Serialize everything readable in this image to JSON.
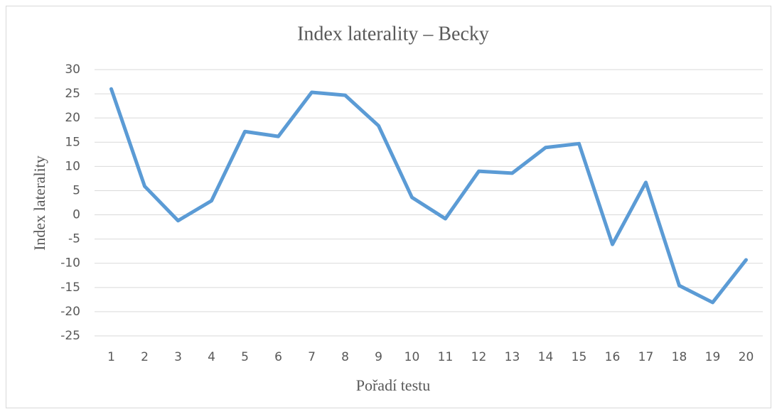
{
  "chart_data": {
    "type": "line",
    "title": "Index laterality – Becky",
    "x_label": "Pořadí testu",
    "y_label": "Index laterality",
    "categories": [
      "1",
      "2",
      "3",
      "4",
      "5",
      "6",
      "7",
      "8",
      "9",
      "10",
      "11",
      "12",
      "13",
      "14",
      "15",
      "16",
      "17",
      "18",
      "19",
      "20"
    ],
    "series": [
      {
        "name": "Index laterality",
        "color": "#5b9bd5",
        "values": [
          26,
          5.9,
          -1.2,
          2.9,
          17.2,
          16.2,
          25.3,
          24.7,
          18.4,
          3.6,
          -0.8,
          9.0,
          8.6,
          13.9,
          14.7,
          -6.1,
          6.7,
          -14.6,
          -18.1,
          -9.3
        ]
      }
    ],
    "ylim": [
      -25,
      30
    ],
    "yticks": [
      -25,
      -20,
      -15,
      -10,
      -5,
      0,
      5,
      10,
      15,
      20,
      25,
      30
    ],
    "grid": true
  }
}
